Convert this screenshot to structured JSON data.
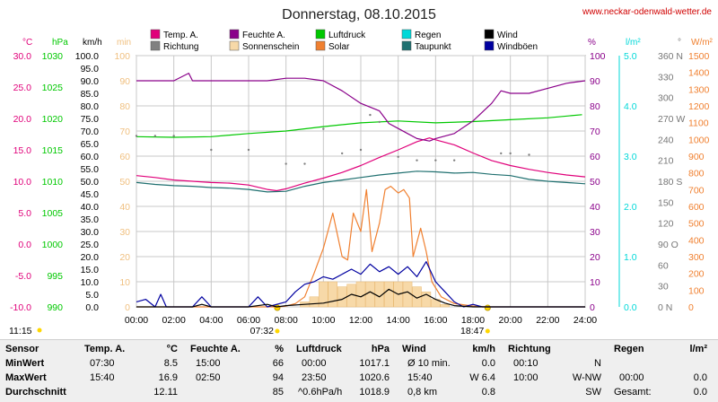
{
  "site_url": "www.neckar-odenwald-wetter.de",
  "colors": {
    "temp": "#e0007a",
    "humidity": "#8a008a",
    "pressure": "#00c800",
    "rain": "#00d8d8",
    "wind": "#000000",
    "direction": "#808080",
    "sunshine": "#f7d9a8",
    "solar": "#f08030",
    "dewpoint": "#207070",
    "gusts": "#0000a0",
    "plot_bg": "#ffffff",
    "table_bg": "#efefef",
    "sun_marker": "#ffd700"
  },
  "chart_data": {
    "type": "line",
    "title": "Donnerstag, 08.10.2015",
    "grid": true,
    "legend_placement": "top",
    "x_ticks": [
      "00:00",
      "02:00",
      "04:00",
      "06:00",
      "08:00",
      "10:00",
      "12:00",
      "14:00",
      "16:00",
      "18:00",
      "20:00",
      "22:00",
      "24:00"
    ],
    "xlim_hours": [
      0,
      24
    ],
    "sunrise": "07:32",
    "sunset": "18:47",
    "left_labels": [
      "11:15"
    ],
    "axes": [
      {
        "id": "temp",
        "unit": "°C",
        "ticks": [
          "30.0",
          "25.0",
          "20.0",
          "15.0",
          "10.0",
          "5.0",
          "0.0",
          "-5.0",
          "-10.0"
        ],
        "range": [
          -10,
          30
        ]
      },
      {
        "id": "pressure",
        "unit": "hPa",
        "ticks": [
          "1030",
          "1025",
          "1020",
          "1015",
          "1010",
          "1005",
          "1000",
          "995",
          "990"
        ],
        "range": [
          990,
          1030
        ]
      },
      {
        "id": "wind",
        "unit": "km/h",
        "ticks": [
          "100.0",
          "95.0",
          "90.0",
          "85.0",
          "80.0",
          "75.0",
          "70.0",
          "65.0",
          "60.0",
          "55.0",
          "50.0",
          "45.0",
          "40.0",
          "35.0",
          "30.0",
          "25.0",
          "20.0",
          "15.0",
          "10.0",
          "5.0",
          "0.0"
        ],
        "range": [
          0,
          100
        ]
      },
      {
        "id": "sunshine",
        "unit": "min",
        "ticks": [
          "100",
          "90",
          "80",
          "70",
          "60",
          "50",
          "40",
          "30",
          "20",
          "10",
          "0"
        ],
        "range": [
          0,
          100
        ]
      },
      {
        "id": "humidity",
        "unit": "%",
        "ticks": [
          "100",
          "90",
          "80",
          "70",
          "60",
          "50",
          "40",
          "30",
          "20",
          "10",
          "0"
        ],
        "range": [
          0,
          100
        ]
      },
      {
        "id": "rain",
        "unit": "l/m²",
        "ticks": [
          "5.0",
          "4.0",
          "3.0",
          "2.0",
          "1.0",
          "0.0"
        ],
        "range": [
          0,
          5
        ]
      },
      {
        "id": "direction",
        "unit": "°",
        "ticks": [
          "360 N",
          "330",
          "300",
          "270 W",
          "240",
          "210",
          "180 S",
          "150",
          "120",
          "90 O",
          "60",
          "30",
          "0 N"
        ],
        "range": [
          0,
          360
        ]
      },
      {
        "id": "solar",
        "unit": "W/m²",
        "ticks": [
          "1500",
          "1400",
          "1300",
          "1200",
          "1100",
          "1000",
          "900",
          "800",
          "700",
          "600",
          "500",
          "400",
          "300",
          "200",
          "100",
          "0"
        ],
        "range": [
          0,
          1500
        ]
      }
    ],
    "legend": [
      {
        "name": "Temp. A.",
        "color_key": "temp"
      },
      {
        "name": "Feuchte A.",
        "color_key": "humidity"
      },
      {
        "name": "Luftdruck",
        "color_key": "pressure"
      },
      {
        "name": "Regen",
        "color_key": "rain"
      },
      {
        "name": "Wind",
        "color_key": "wind"
      },
      {
        "name": "Richtung",
        "color_key": "direction"
      },
      {
        "name": "Sonnenschein",
        "color_key": "sunshine"
      },
      {
        "name": "Solar",
        "color_key": "solar"
      },
      {
        "name": "Taupunkt",
        "color_key": "dewpoint"
      },
      {
        "name": "Windböen",
        "color_key": "gusts"
      }
    ],
    "series": [
      {
        "name": "Temp. A.",
        "axis": "temp",
        "color_key": "temp",
        "points": [
          [
            0,
            10.9
          ],
          [
            1,
            10.6
          ],
          [
            2,
            10.2
          ],
          [
            3,
            10.0
          ],
          [
            4,
            9.8
          ],
          [
            5,
            9.7
          ],
          [
            6,
            9.4
          ],
          [
            7,
            8.7
          ],
          [
            7.5,
            8.5
          ],
          [
            8,
            8.8
          ],
          [
            9,
            9.7
          ],
          [
            10,
            10.5
          ],
          [
            11,
            11.4
          ],
          [
            12,
            12.5
          ],
          [
            13,
            13.8
          ],
          [
            14,
            15.0
          ],
          [
            15,
            16.3
          ],
          [
            15.67,
            16.9
          ],
          [
            16,
            16.6
          ],
          [
            17,
            15.8
          ],
          [
            18,
            14.5
          ],
          [
            19,
            13.3
          ],
          [
            20,
            12.5
          ],
          [
            21,
            11.9
          ],
          [
            22,
            11.4
          ],
          [
            23,
            11.0
          ],
          [
            24,
            10.7
          ]
        ]
      },
      {
        "name": "Taupunkt",
        "axis": "temp",
        "color_key": "dewpoint",
        "points": [
          [
            0,
            9.8
          ],
          [
            1,
            9.5
          ],
          [
            2,
            9.3
          ],
          [
            3,
            9.2
          ],
          [
            4,
            9.0
          ],
          [
            5,
            8.9
          ],
          [
            6,
            8.7
          ],
          [
            7,
            8.3
          ],
          [
            8,
            8.4
          ],
          [
            9,
            9.2
          ],
          [
            10,
            9.8
          ],
          [
            11,
            10.2
          ],
          [
            12,
            10.6
          ],
          [
            13,
            11.0
          ],
          [
            14,
            11.3
          ],
          [
            15,
            11.6
          ],
          [
            16,
            11.5
          ],
          [
            17,
            11.3
          ],
          [
            18,
            11.4
          ],
          [
            19,
            11.1
          ],
          [
            20,
            10.9
          ],
          [
            21,
            10.3
          ],
          [
            22,
            10.0
          ],
          [
            23,
            9.8
          ],
          [
            24,
            9.6
          ]
        ]
      },
      {
        "name": "Feuchte A.",
        "axis": "humidity",
        "color_key": "humidity",
        "points": [
          [
            0,
            90
          ],
          [
            1,
            90
          ],
          [
            2,
            90
          ],
          [
            2.8,
            93
          ],
          [
            3,
            90
          ],
          [
            4,
            90
          ],
          [
            5,
            90
          ],
          [
            6,
            90
          ],
          [
            7,
            90
          ],
          [
            8,
            91
          ],
          [
            9,
            91
          ],
          [
            10,
            90
          ],
          [
            11,
            86
          ],
          [
            12,
            81
          ],
          [
            13,
            78
          ],
          [
            13.5,
            73
          ],
          [
            14,
            71
          ],
          [
            14.5,
            69
          ],
          [
            15,
            67
          ],
          [
            15.67,
            66
          ],
          [
            16,
            67
          ],
          [
            17,
            69
          ],
          [
            18,
            74
          ],
          [
            19,
            81
          ],
          [
            19.5,
            86
          ],
          [
            20,
            85
          ],
          [
            21,
            85
          ],
          [
            22,
            87
          ],
          [
            23,
            89
          ],
          [
            24,
            90
          ]
        ]
      },
      {
        "name": "Luftdruck",
        "axis": "pressure",
        "color_key": "pressure",
        "points": [
          [
            0,
            1017.1
          ],
          [
            2,
            1017.0
          ],
          [
            4,
            1017.1
          ],
          [
            6,
            1017.6
          ],
          [
            8,
            1018.0
          ],
          [
            10,
            1018.7
          ],
          [
            12,
            1019.3
          ],
          [
            14,
            1019.6
          ],
          [
            16,
            1019.3
          ],
          [
            18,
            1019.5
          ],
          [
            20,
            1019.8
          ],
          [
            22,
            1020.1
          ],
          [
            23.83,
            1020.6
          ]
        ]
      },
      {
        "name": "Richtung",
        "axis": "direction",
        "color_key": "direction",
        "style": "dots",
        "points": [
          [
            0,
            245
          ],
          [
            1,
            245
          ],
          [
            2,
            245
          ],
          [
            4,
            225
          ],
          [
            6,
            225
          ],
          [
            8,
            205
          ],
          [
            9,
            205
          ],
          [
            10,
            255
          ],
          [
            11,
            220
          ],
          [
            12,
            225
          ],
          [
            12.5,
            275
          ],
          [
            13,
            265
          ],
          [
            14,
            215
          ],
          [
            15,
            210
          ],
          [
            16,
            210
          ],
          [
            17,
            210
          ],
          [
            19.5,
            220
          ],
          [
            20,
            220
          ],
          [
            21,
            218
          ]
        ]
      },
      {
        "name": "Solar",
        "axis": "solar",
        "color_key": "solar",
        "points": [
          [
            0,
            0
          ],
          [
            7.6,
            0
          ],
          [
            8,
            5
          ],
          [
            8.5,
            20
          ],
          [
            9,
            60
          ],
          [
            9.5,
            200
          ],
          [
            10,
            350
          ],
          [
            10.5,
            560
          ],
          [
            11,
            300
          ],
          [
            11.3,
            280
          ],
          [
            11.6,
            560
          ],
          [
            12,
            450
          ],
          [
            12.3,
            700
          ],
          [
            12.6,
            330
          ],
          [
            13,
            500
          ],
          [
            13.3,
            700
          ],
          [
            13.6,
            720
          ],
          [
            14,
            680
          ],
          [
            14.3,
            700
          ],
          [
            14.6,
            650
          ],
          [
            14.8,
            300
          ],
          [
            15.2,
            470
          ],
          [
            15.5,
            330
          ],
          [
            15.8,
            150
          ],
          [
            16.3,
            60
          ],
          [
            17,
            20
          ],
          [
            18,
            5
          ],
          [
            18.8,
            0
          ],
          [
            24,
            0
          ]
        ]
      },
      {
        "name": "Sonnenschein",
        "axis": "sunshine",
        "color_key": "sunshine",
        "style": "bars",
        "points": [
          [
            9,
            2
          ],
          [
            9.5,
            4
          ],
          [
            10,
            10
          ],
          [
            10.5,
            10
          ],
          [
            11,
            8
          ],
          [
            11.5,
            9
          ],
          [
            12,
            10
          ],
          [
            12.5,
            10
          ],
          [
            13,
            10
          ],
          [
            13.5,
            10
          ],
          [
            14,
            10
          ],
          [
            14.5,
            10
          ],
          [
            15,
            8
          ],
          [
            15.5,
            6
          ],
          [
            16,
            3
          ],
          [
            16.5,
            1
          ]
        ]
      },
      {
        "name": "Wind",
        "axis": "wind",
        "color_key": "wind",
        "points": [
          [
            0,
            0
          ],
          [
            3,
            0
          ],
          [
            3.5,
            1
          ],
          [
            4,
            0
          ],
          [
            6,
            0
          ],
          [
            7,
            1
          ],
          [
            7.5,
            0
          ],
          [
            8,
            0.5
          ],
          [
            9,
            1
          ],
          [
            10,
            1.5
          ],
          [
            11,
            3
          ],
          [
            11.5,
            5
          ],
          [
            12,
            4
          ],
          [
            12.5,
            6
          ],
          [
            13,
            4
          ],
          [
            13.5,
            7
          ],
          [
            14,
            5
          ],
          [
            14.5,
            6
          ],
          [
            15,
            3.5
          ],
          [
            15.5,
            5
          ],
          [
            16,
            3
          ],
          [
            16.5,
            1.5
          ],
          [
            17,
            0.5
          ],
          [
            18,
            0
          ],
          [
            24,
            0
          ]
        ]
      },
      {
        "name": "Windböen",
        "axis": "wind",
        "color_key": "gusts",
        "points": [
          [
            0,
            2
          ],
          [
            0.5,
            3
          ],
          [
            1,
            0
          ],
          [
            1.3,
            5
          ],
          [
            1.6,
            0
          ],
          [
            2,
            0
          ],
          [
            3,
            0
          ],
          [
            3.5,
            4
          ],
          [
            4,
            0
          ],
          [
            6,
            0
          ],
          [
            6.5,
            4
          ],
          [
            7,
            0
          ],
          [
            8,
            2
          ],
          [
            8.5,
            6
          ],
          [
            9,
            9
          ],
          [
            9.5,
            10
          ],
          [
            10,
            12
          ],
          [
            10.5,
            11
          ],
          [
            11,
            13
          ],
          [
            11.5,
            15
          ],
          [
            12,
            13
          ],
          [
            12.5,
            17
          ],
          [
            13,
            14
          ],
          [
            13.5,
            16
          ],
          [
            14,
            13
          ],
          [
            14.5,
            16
          ],
          [
            15,
            12
          ],
          [
            15.5,
            18
          ],
          [
            16,
            10
          ],
          [
            16.5,
            6
          ],
          [
            17,
            2
          ],
          [
            17.5,
            0
          ],
          [
            18,
            1
          ],
          [
            18.5,
            0
          ],
          [
            24,
            0
          ]
        ]
      }
    ]
  },
  "table": {
    "headers": {
      "sensor": "Sensor",
      "temp": "Temp. A.",
      "temp_unit": "°C",
      "hum": "Feuchte A.",
      "hum_unit": "%",
      "press": "Luftdruck",
      "press_unit": "hPa",
      "wind": "Wind",
      "wind_unit": "km/h",
      "dir": "Richtung",
      "rain": "Regen",
      "rain_unit": "l/m²"
    },
    "rows": [
      {
        "label": "MinWert",
        "temp_time": "07:30",
        "temp_val": "8.5",
        "hum_time": "15:00",
        "hum_val": "66",
        "press_time": "00:00",
        "press_val": "1017.1",
        "wind_time": "Ø 10 min.",
        "wind_val": "0.0",
        "dir_time": "00:10",
        "dir_val": "N",
        "rain_time": "",
        "rain_val": ""
      },
      {
        "label": "MaxWert",
        "temp_time": "15:40",
        "temp_val": "16.9",
        "hum_time": "02:50",
        "hum_val": "94",
        "press_time": "23:50",
        "press_val": "1020.6",
        "wind_time": "15:40",
        "wind_val": "W 6.4",
        "dir_time": "10:00",
        "dir_val": "W-NW",
        "rain_time": "00:00",
        "rain_val": "0.0"
      },
      {
        "label": "Durchschnitt",
        "temp_time": "",
        "temp_val": "12.11",
        "hum_time": "",
        "hum_val": "85",
        "press_time": "^0.6hPa/h",
        "press_val": "1018.9",
        "wind_time": "0,8 km",
        "wind_val": "0.8",
        "dir_time": "",
        "dir_val": "SW",
        "rain_time": "Gesamt:",
        "rain_val": "0.0"
      }
    ]
  }
}
